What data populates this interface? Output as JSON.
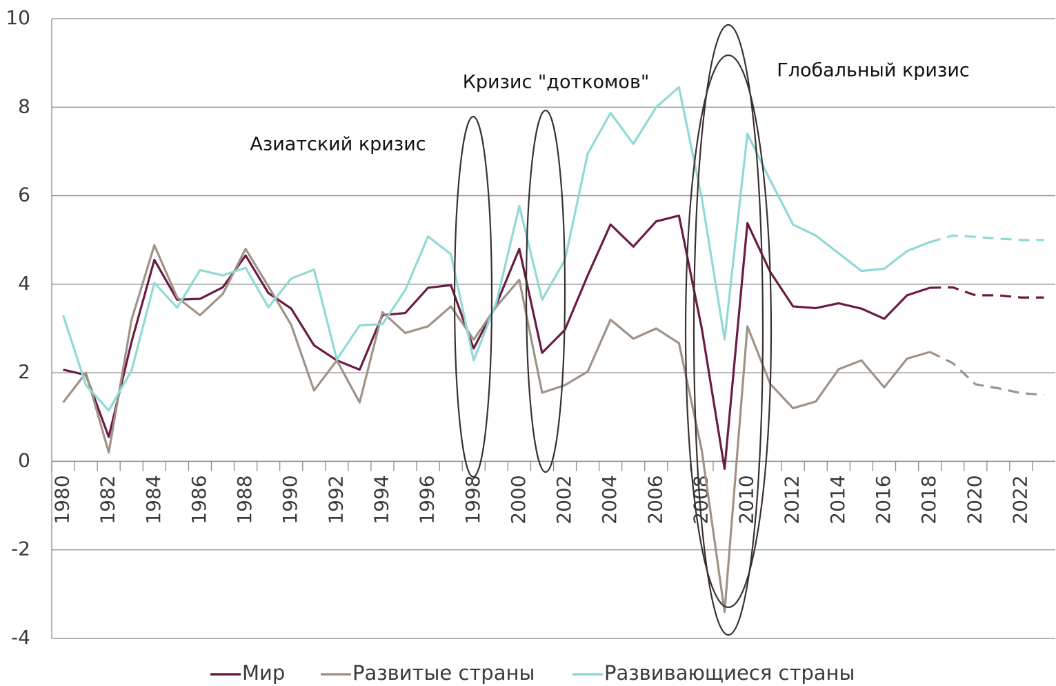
{
  "chart_data": {
    "type": "line",
    "x": [
      1980,
      1981,
      1982,
      1983,
      1984,
      1985,
      1986,
      1987,
      1988,
      1989,
      1990,
      1991,
      1992,
      1993,
      1994,
      1995,
      1996,
      1997,
      1998,
      1999,
      2000,
      2001,
      2002,
      2003,
      2004,
      2005,
      2006,
      2007,
      2008,
      2009,
      2010,
      2011,
      2012,
      2013,
      2014,
      2015,
      2016,
      2017,
      2018,
      2019,
      2020,
      2021,
      2022,
      2023
    ],
    "xlim": [
      1979.5,
      2023.5
    ],
    "xticks": [
      1980,
      1982,
      1984,
      1986,
      1988,
      1990,
      1992,
      1994,
      1996,
      1998,
      2000,
      2002,
      2004,
      2006,
      2008,
      2010,
      2012,
      2014,
      2016,
      2018,
      2020,
      2022
    ],
    "ylim": [
      -4,
      10
    ],
    "yticks": [
      -4,
      -2,
      0,
      2,
      4,
      6,
      8,
      10
    ],
    "grid": true,
    "legend": "bottom",
    "forecast_from": 2018,
    "series": [
      {
        "name": "Мир",
        "color": "#6b1a44",
        "values": [
          2.07,
          1.95,
          0.55,
          2.7,
          4.55,
          3.65,
          3.67,
          3.93,
          4.65,
          3.8,
          3.45,
          2.62,
          2.28,
          2.07,
          3.3,
          3.35,
          3.92,
          3.98,
          2.55,
          3.55,
          4.8,
          2.45,
          2.97,
          4.2,
          5.35,
          4.85,
          5.42,
          5.55,
          3.0,
          -0.17,
          5.38,
          4.28,
          3.5,
          3.46,
          3.57,
          3.45,
          3.22,
          3.75,
          3.92,
          3.93,
          3.75,
          3.75,
          3.7,
          3.7
        ]
      },
      {
        "name": "Развитые страны",
        "color": "#a09286",
        "values": [
          1.33,
          2.0,
          0.2,
          3.2,
          4.88,
          3.7,
          3.3,
          3.78,
          4.8,
          3.95,
          3.08,
          1.6,
          2.28,
          1.33,
          3.37,
          2.9,
          3.05,
          3.5,
          2.75,
          3.5,
          4.1,
          1.55,
          1.72,
          2.03,
          3.2,
          2.77,
          3.0,
          2.67,
          0.25,
          -3.4,
          3.05,
          1.75,
          1.2,
          1.35,
          2.08,
          2.28,
          1.67,
          2.32,
          2.47,
          2.22,
          1.74,
          1.65,
          1.54,
          1.5
        ]
      },
      {
        "name": "Развивающиеся страны",
        "color": "#8fd9d6",
        "values": [
          3.3,
          1.72,
          1.15,
          2.05,
          4.03,
          3.47,
          4.32,
          4.2,
          4.37,
          3.48,
          4.13,
          4.33,
          2.3,
          3.07,
          3.1,
          3.87,
          5.08,
          4.68,
          2.28,
          3.6,
          5.77,
          3.65,
          4.55,
          6.95,
          7.87,
          7.17,
          8.0,
          8.45,
          5.95,
          2.75,
          7.4,
          6.35,
          5.35,
          5.1,
          4.7,
          4.3,
          4.35,
          4.75,
          4.95,
          5.1,
          5.07,
          5.03,
          5.0,
          5.0
        ]
      }
    ],
    "annotations": [
      "Азиатский кризис",
      "Кризис \"доткомов\"",
      "Глобальный кризис"
    ]
  }
}
